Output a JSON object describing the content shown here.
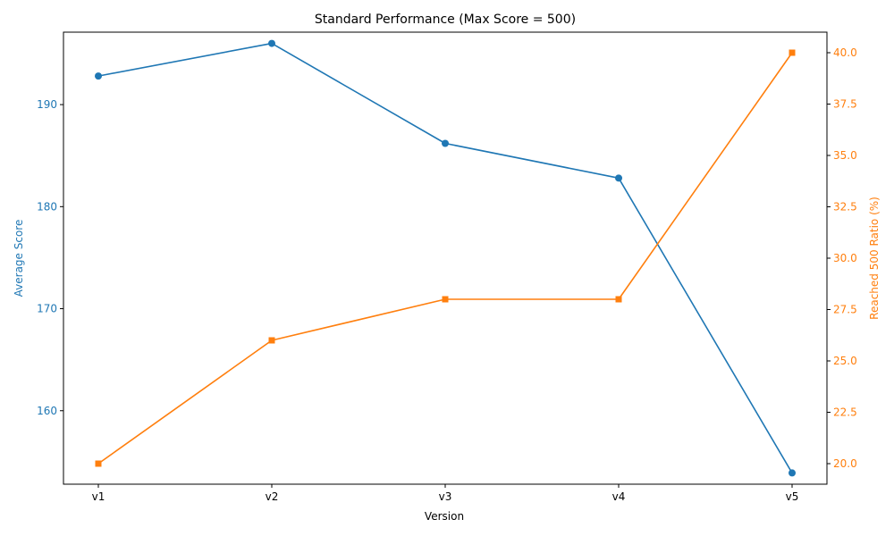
{
  "chart_data": {
    "type": "line",
    "title": "Standard Performance (Max Score = 500)",
    "xlabel": "Version",
    "categories": [
      "v1",
      "v2",
      "v3",
      "v4",
      "v5"
    ],
    "series": [
      {
        "values": [
          192.8,
          196.0,
          186.2,
          182.8,
          153.9
        ],
        "color": "#1f77b4",
        "marker": "circle",
        "axis": "left"
      },
      {
        "values": [
          20,
          26,
          28,
          28,
          40
        ],
        "color": "#ff7f0e",
        "marker": "square",
        "axis": "right"
      }
    ],
    "y_left": {
      "label": "Average Score",
      "color": "#1f77b4",
      "ylim": [
        152.8,
        197.1
      ],
      "ticks": [
        160,
        170,
        180,
        190
      ]
    },
    "y_right": {
      "label": "Reached 500 Ratio (%)",
      "color": "#ff7f0e",
      "ylim": [
        19.0,
        41.0
      ],
      "ticks": [
        20.0,
        22.5,
        25.0,
        27.5,
        30.0,
        32.5,
        35.0,
        37.5,
        40.0
      ]
    },
    "grid": false
  }
}
